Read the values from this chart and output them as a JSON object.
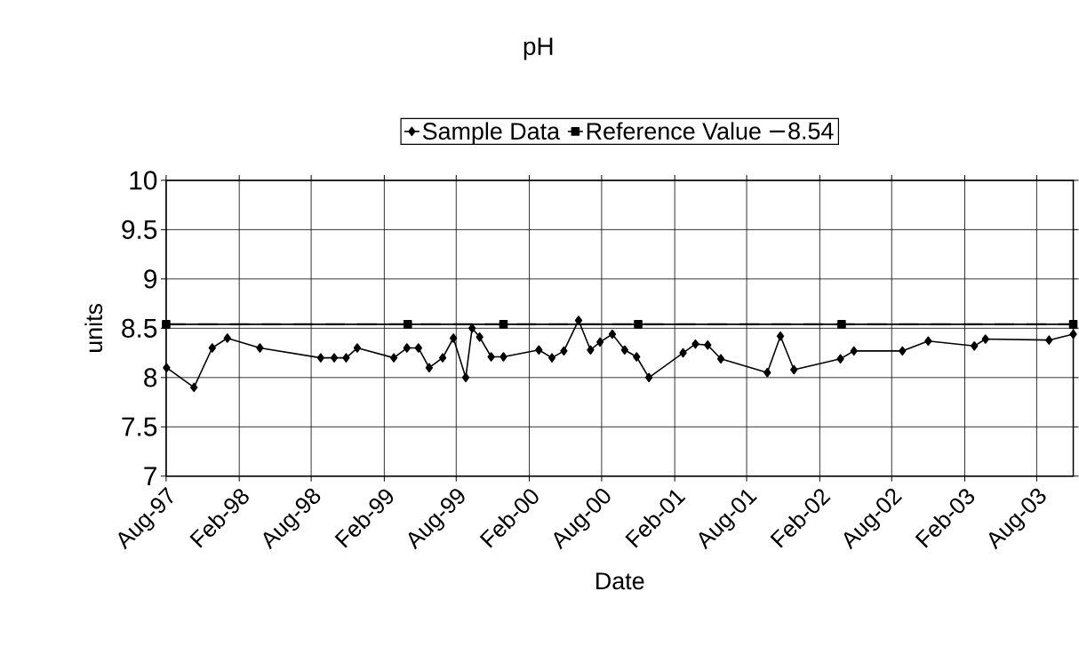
{
  "chart_data": {
    "type": "line",
    "title": "pH",
    "xlabel": "Date",
    "ylabel": "units",
    "xlim": [
      "1997-08-01",
      "2003-11-01"
    ],
    "xticks": [
      {
        "value": "1997-08-01",
        "label": "Aug-97"
      },
      {
        "value": "1998-02-01",
        "label": "Feb-98"
      },
      {
        "value": "1998-08-01",
        "label": "Aug-98"
      },
      {
        "value": "1999-02-01",
        "label": "Feb-99"
      },
      {
        "value": "1999-08-01",
        "label": "Aug-99"
      },
      {
        "value": "2000-02-01",
        "label": "Feb-00"
      },
      {
        "value": "2000-08-01",
        "label": "Aug-00"
      },
      {
        "value": "2001-02-01",
        "label": "Feb-01"
      },
      {
        "value": "2001-08-01",
        "label": "Aug-01"
      },
      {
        "value": "2002-02-01",
        "label": "Feb-02"
      },
      {
        "value": "2002-08-01",
        "label": "Aug-02"
      },
      {
        "value": "2003-02-01",
        "label": "Feb-03"
      },
      {
        "value": "2003-08-01",
        "label": "Aug-03"
      }
    ],
    "ylim": [
      7,
      10
    ],
    "yticks": [
      7,
      7.5,
      8,
      8.5,
      9,
      9.5,
      10
    ],
    "grid": true,
    "legend": "top",
    "series": [
      {
        "name": "Sample Data",
        "color": "#000000",
        "marker": "diamond",
        "line_style": "solid",
        "x": [
          "1997-08-02",
          "1997-10-10",
          "1997-11-25",
          "1998-01-02",
          "1998-03-25",
          "1998-08-25",
          "1998-09-28",
          "1998-10-28",
          "1998-11-25",
          "1999-02-25",
          "1999-03-30",
          "1999-04-28",
          "1999-05-25",
          "1999-06-28",
          "1999-07-25",
          "1999-08-25",
          "1999-09-10",
          "1999-09-29",
          "1999-10-28",
          "1999-11-28",
          "2000-02-25",
          "2000-03-29",
          "2000-04-28",
          "2000-06-04",
          "2000-07-04",
          "2000-07-28",
          "2000-08-28",
          "2000-09-28",
          "2000-10-28",
          "2000-11-28",
          "2001-02-22",
          "2001-03-25",
          "2001-04-25",
          "2001-05-28",
          "2001-09-22",
          "2001-10-25",
          "2001-11-28",
          "2002-03-25",
          "2002-04-28",
          "2002-08-28",
          "2002-11-01",
          "2003-02-25",
          "2003-03-25",
          "2003-09-01",
          "2003-11-01"
        ],
        "values": [
          8.1,
          7.9,
          8.3,
          8.4,
          8.3,
          8.2,
          8.2,
          8.2,
          8.3,
          8.2,
          8.3,
          8.3,
          8.1,
          8.2,
          8.4,
          8.0,
          8.5,
          8.41,
          8.21,
          8.21,
          8.28,
          8.2,
          8.27,
          8.58,
          8.28,
          8.36,
          8.44,
          8.28,
          8.21,
          8.0,
          8.25,
          8.34,
          8.33,
          8.19,
          8.05,
          8.42,
          8.08,
          8.19,
          8.27,
          8.27,
          8.37,
          8.32,
          8.39,
          8.38,
          8.44
        ]
      },
      {
        "name": "Reference Value",
        "color": "#000000",
        "marker": "square",
        "line_style": "solid",
        "x": [
          "1997-08-01",
          "1999-04-01",
          "1999-11-28",
          "2000-11-01",
          "2002-03-28",
          "2003-11-01"
        ],
        "values": [
          8.54,
          8.54,
          8.54,
          8.54,
          8.54,
          8.54
        ]
      }
    ],
    "ref_lines": [
      {
        "axis": "y",
        "value": 8.54,
        "label": "8.54",
        "line_style": "dashed",
        "color": "#000000"
      }
    ]
  }
}
